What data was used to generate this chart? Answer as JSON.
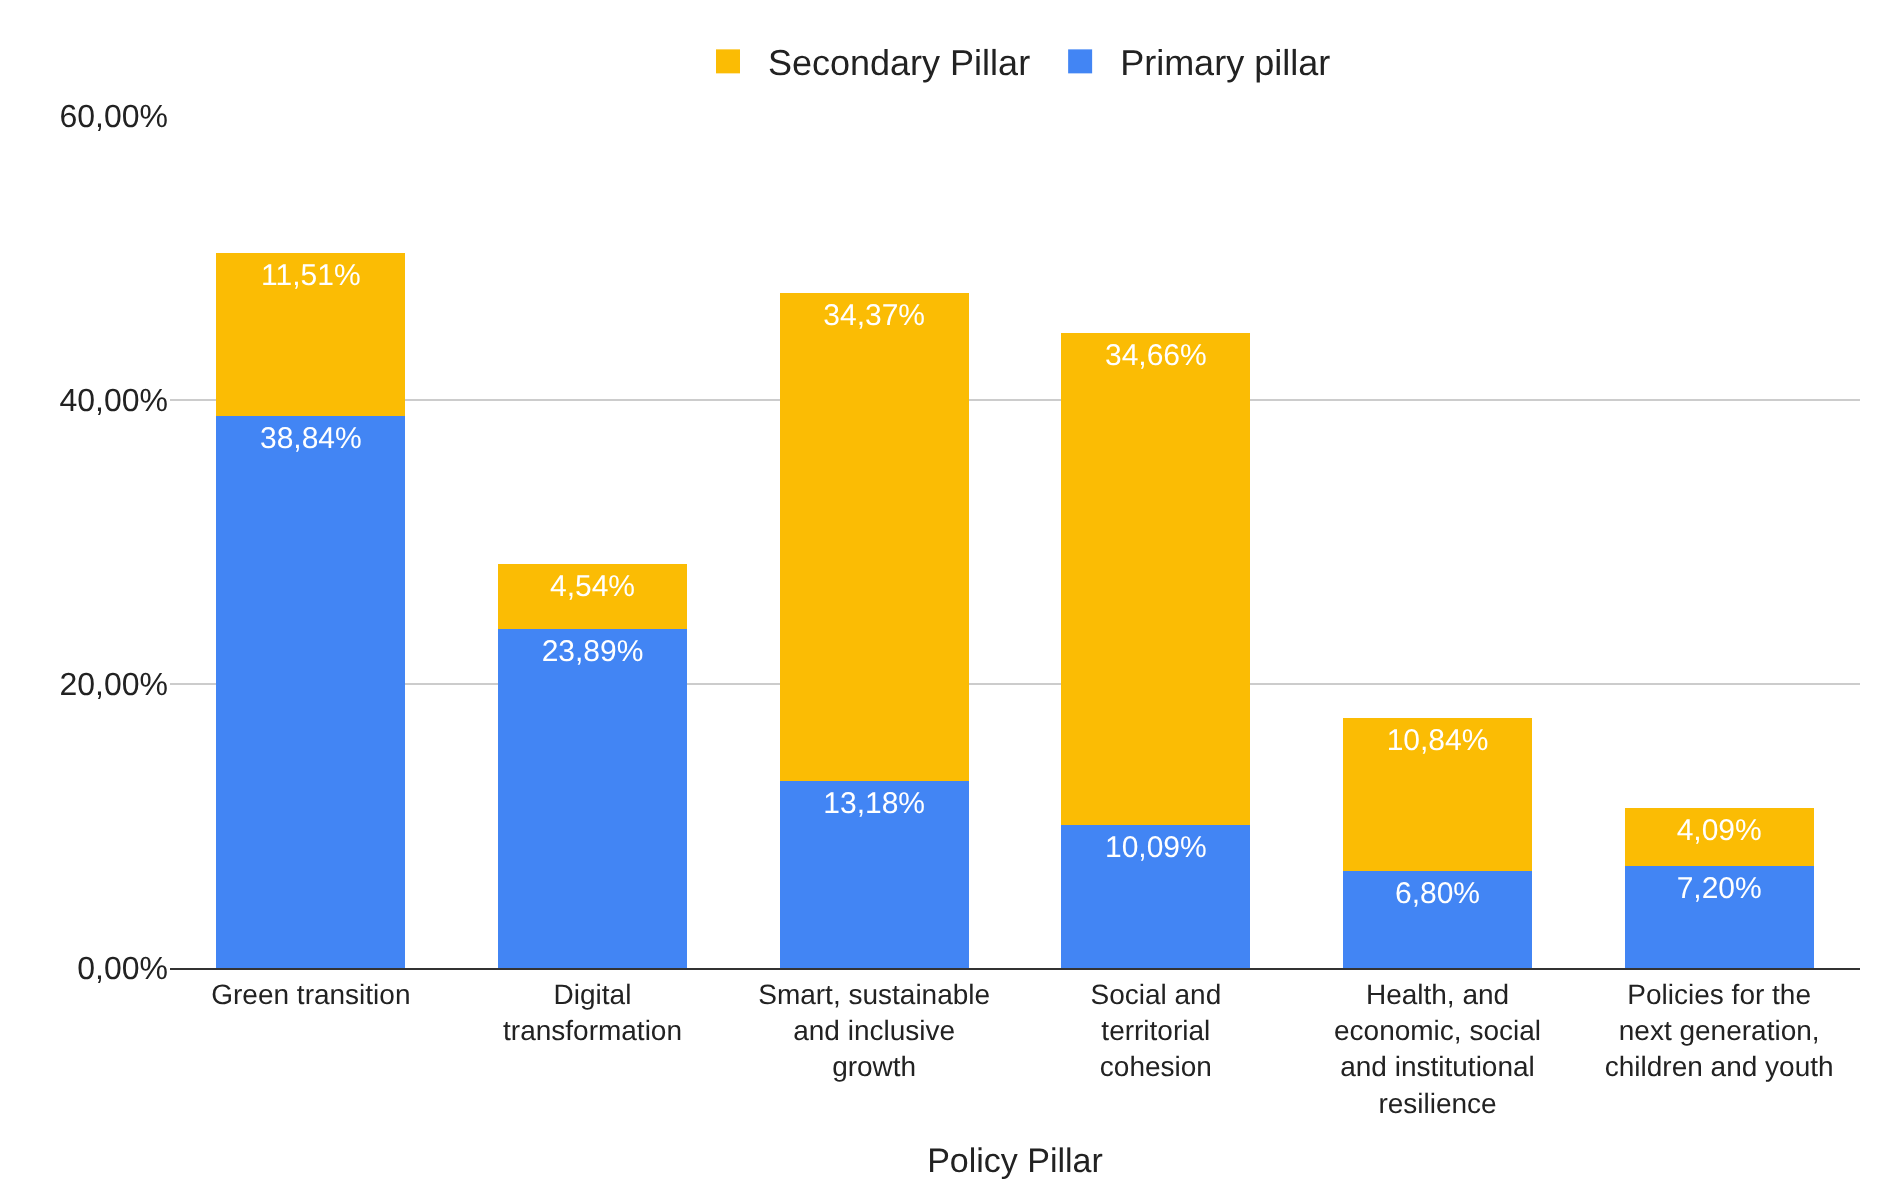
{
  "chart_data": {
    "type": "bar",
    "stacked": true,
    "xlabel": "Policy Pillar",
    "categories": [
      "Green transition",
      "Digital transformation",
      "Smart, sustainable and inclusive growth",
      "Social and territorial cohesion",
      "Health, and economic, social and institutional resilience",
      "Policies for the next generation, children and youth"
    ],
    "series": [
      {
        "name": "Primary pillar",
        "color": "#4285f4",
        "values": [
          38.84,
          23.89,
          13.18,
          10.09,
          6.8,
          7.2
        ],
        "value_labels": [
          "38,84%",
          "23,89%",
          "13,18%",
          "10,09%",
          "6,80%",
          "7,20%"
        ]
      },
      {
        "name": "Secondary Pillar",
        "color": "#fbbc04",
        "values": [
          11.51,
          4.54,
          34.37,
          34.66,
          10.84,
          4.09
        ],
        "value_labels": [
          "11,51%",
          "4,54%",
          "34,37%",
          "34,66%",
          "10,84%",
          "4,09%"
        ]
      }
    ],
    "ylim": [
      0,
      60
    ],
    "yticks": [
      {
        "value": 0,
        "label": "0,00%"
      },
      {
        "value": 20,
        "label": "20,00%"
      },
      {
        "value": 40,
        "label": "40,00%"
      },
      {
        "value": 60,
        "label": "60,00%"
      }
    ],
    "grid": "y",
    "legend": "top"
  }
}
